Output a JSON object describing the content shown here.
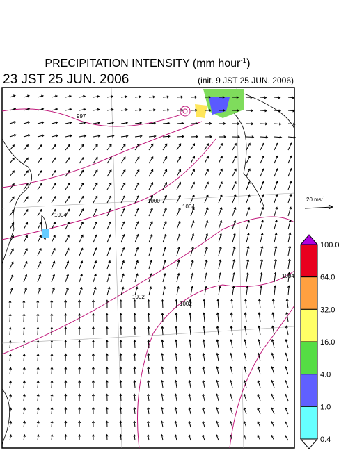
{
  "header": {
    "title": "PRECIPITATION INTENSITY (mm hour",
    "title_sup": "-1",
    "title_end": ")",
    "valid_time": "23 JST 25 JUN. 2006",
    "init_time": "(init. 9 JST 25 JUN. 2006)"
  },
  "wind_scale": {
    "label": "20 ms",
    "label_sup": "-1"
  },
  "isobars": [
    "997",
    "1000",
    "1004",
    "1004",
    "1002",
    "1002",
    "1004"
  ],
  "colorbar": {
    "levels": [
      "100.0",
      "64.0",
      "32.0",
      "16.0",
      "4.0",
      "1.0",
      "0.4"
    ]
  }
}
